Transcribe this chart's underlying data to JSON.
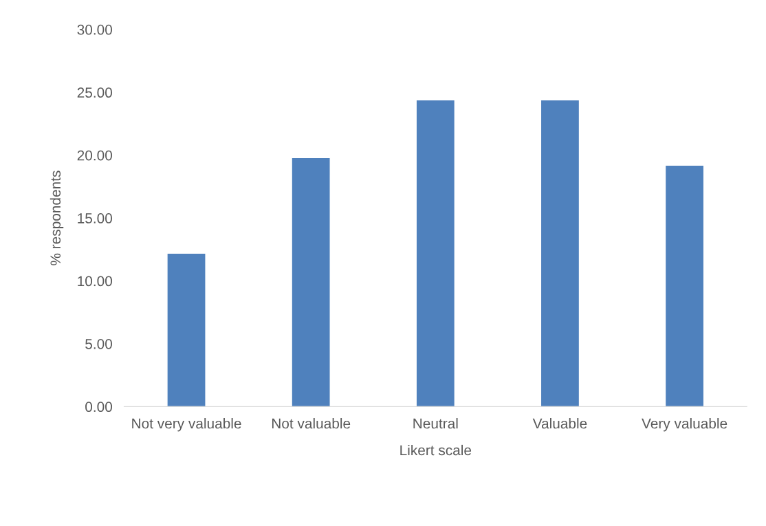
{
  "chart_data": {
    "type": "bar",
    "xlabel": "Likert scale",
    "ylabel": "% respondents",
    "categories": [
      "Not very valuable",
      "Not valuable",
      "Neutral",
      "Valuable",
      "Very valuable"
    ],
    "values": [
      12.2,
      19.8,
      24.4,
      24.4,
      19.2
    ],
    "color": "#4f81bd",
    "ylim": [
      0,
      30
    ],
    "yticks": [
      {
        "value": 0,
        "label": "0.00"
      },
      {
        "value": 5,
        "label": "5.00"
      },
      {
        "value": 10,
        "label": "10.00"
      },
      {
        "value": 15,
        "label": "15.00"
      },
      {
        "value": 20,
        "label": "20.00"
      },
      {
        "value": 25,
        "label": "25.00"
      },
      {
        "value": 30,
        "label": "30.00"
      }
    ],
    "grid": false,
    "legend": false
  }
}
